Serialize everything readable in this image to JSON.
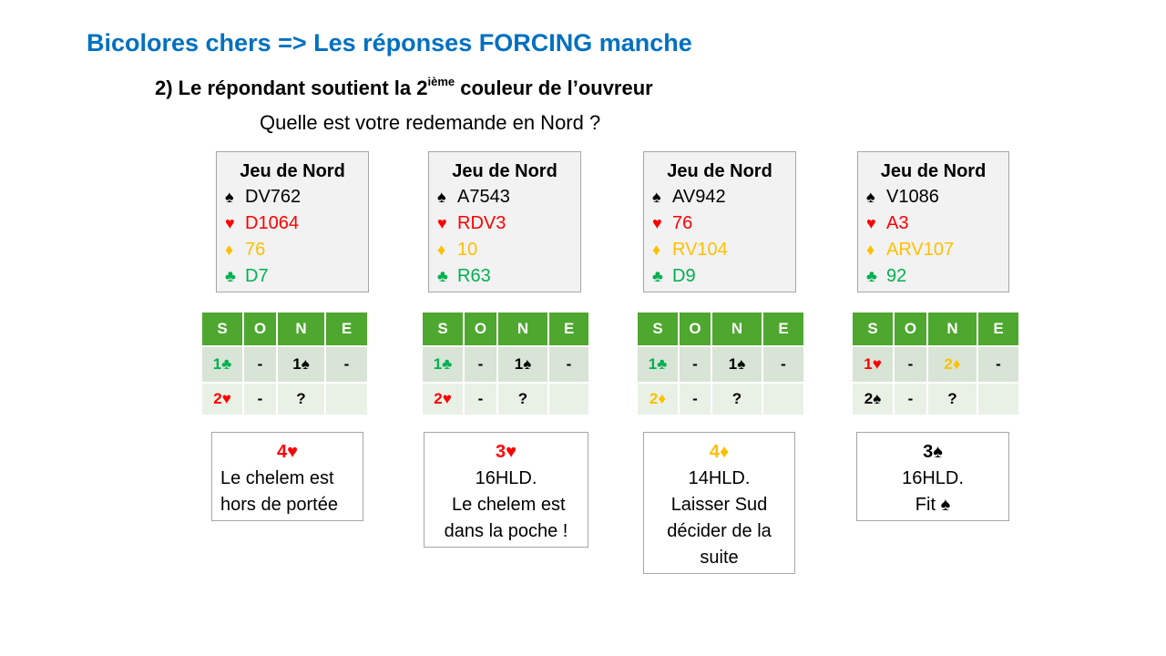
{
  "title": "Bicolores chers => Les réponses FORCING manche",
  "subtitle": {
    "prefix": "2) Le répondant soutient la 2",
    "sup": "ième",
    "suffix": " couleur de l’ouvreur"
  },
  "question": "Quelle est votre redemande en Nord ?",
  "suit_symbols": {
    "spade": "♠",
    "heart": "♥",
    "diamond": "♦",
    "club": "♣"
  },
  "colors": {
    "title": "#0070c0",
    "header_green": "#4ea72e",
    "row1": "#d8e4d6",
    "row2": "#e9f1e7",
    "heart": "#ff0000",
    "diamond": "#ffc000",
    "club": "#00b050",
    "spade": "#000000"
  },
  "headers": [
    "S",
    "O",
    "N",
    "E"
  ],
  "hands": [
    {
      "title": "Jeu de Nord",
      "spades": "DV762",
      "hearts": "D1064",
      "diamonds": "76",
      "clubs": "D7"
    },
    {
      "title": "Jeu de Nord",
      "spades": "A7543",
      "hearts": "RDV3",
      "diamonds": "10",
      "clubs": "R63"
    },
    {
      "title": "Jeu de Nord",
      "spades": "AV942",
      "hearts": "76",
      "diamonds": "RV104",
      "clubs": "D9"
    },
    {
      "title": "Jeu de Nord",
      "spades": "V1086",
      "hearts": "A3",
      "diamonds": "ARV107",
      "clubs": "92"
    }
  ],
  "auctions": [
    {
      "rows": [
        [
          "1",
          "-",
          "1",
          "-"
        ],
        [
          "2",
          "-",
          "?",
          ""
        ]
      ]
    },
    {
      "rows": [
        [
          "1",
          "-",
          "1",
          "-"
        ],
        [
          "2",
          "-",
          "?",
          ""
        ]
      ]
    },
    {
      "rows": [
        [
          "1",
          "-",
          "1",
          "-"
        ],
        [
          "2",
          "-",
          "?",
          ""
        ]
      ]
    },
    {
      "rows": [
        [
          "1",
          "-",
          "2",
          "-"
        ],
        [
          "2",
          "-",
          "?",
          ""
        ]
      ]
    }
  ],
  "answers": [
    {
      "level": "4",
      "lines": [
        "Le chelem est",
        "hors de portée"
      ]
    },
    {
      "level": "3",
      "lines": [
        "16HLD.",
        " Le chelem est",
        "dans la poche !"
      ]
    },
    {
      "level": "4",
      "lines": [
        "14HLD.",
        "Laisser Sud",
        "décider de la",
        "suite"
      ]
    },
    {
      "level": "3",
      "lines": [
        "16HLD.",
        "Fit"
      ]
    }
  ]
}
